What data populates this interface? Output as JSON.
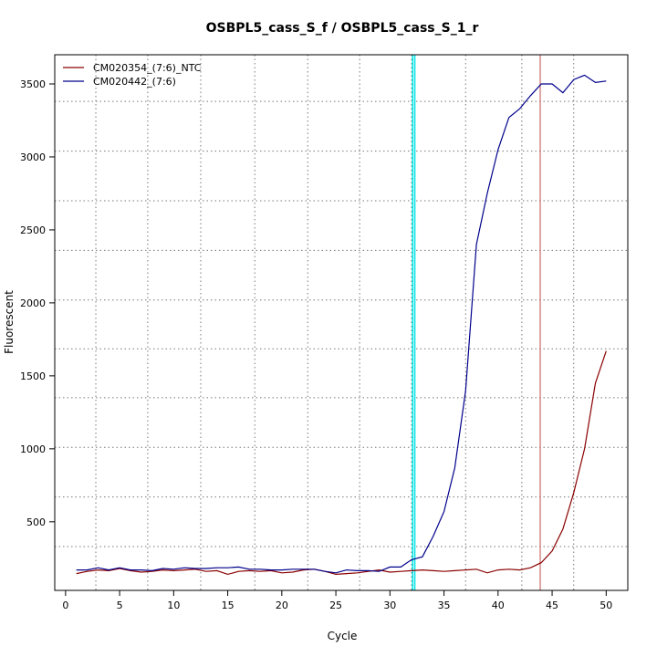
{
  "chart_data": {
    "type": "line",
    "title": "OSBPL5_cass_S_f / OSBPL5_cass_S_1_r",
    "xlabel": "Cycle",
    "ylabel": "Fluorescent",
    "xlim": [
      -1,
      52
    ],
    "ylim": [
      30,
      3700
    ],
    "x_ticks": [
      0,
      5,
      10,
      15,
      20,
      25,
      30,
      35,
      40,
      45,
      50
    ],
    "y_ticks": [
      500,
      1000,
      1500,
      2000,
      2500,
      3000,
      3500
    ],
    "x_grid": [
      2.8,
      7.6,
      12.5,
      17.5,
      22.4,
      27.2,
      32.0,
      37.0,
      42.2,
      47.0
    ],
    "y_grid": [
      330,
      670,
      1010,
      1350,
      1685,
      2020,
      2360,
      2700,
      3040,
      3380
    ],
    "grid": true,
    "legend_position": "top-left",
    "vlines": [
      {
        "x": 32.1,
        "color": "#00e5e5",
        "width": 1.5
      },
      {
        "x": 32.3,
        "color": "#00e5e5",
        "width": 1.5
      },
      {
        "x": 43.9,
        "color": "#c05050",
        "width": 1
      }
    ],
    "series": [
      {
        "name": "CM020354_(7:6)_NTC",
        "color": "#8b0000",
        "x": [
          1,
          2,
          3,
          4,
          5,
          6,
          7,
          8,
          9,
          10,
          11,
          12,
          13,
          14,
          15,
          16,
          17,
          18,
          19,
          20,
          21,
          22,
          23,
          24,
          25,
          26,
          27,
          28,
          29,
          30,
          31,
          32,
          33,
          34,
          35,
          36,
          37,
          38,
          39,
          40,
          41,
          42,
          43,
          44,
          45,
          46,
          47,
          48,
          49,
          50
        ],
        "values": [
          145,
          160,
          170,
          165,
          180,
          165,
          155,
          160,
          170,
          165,
          170,
          175,
          160,
          165,
          140,
          160,
          165,
          160,
          165,
          150,
          155,
          170,
          175,
          160,
          140,
          145,
          150,
          160,
          170,
          155,
          160,
          165,
          170,
          165,
          160,
          165,
          170,
          175,
          150,
          170,
          175,
          170,
          185,
          220,
          300,
          450,
          700,
          1000,
          1450,
          1670
        ]
      },
      {
        "name": "CM020442_(7:6)",
        "color": "#00008b",
        "x": [
          1,
          2,
          3,
          4,
          5,
          6,
          7,
          8,
          9,
          10,
          11,
          12,
          13,
          14,
          15,
          16,
          17,
          18,
          19,
          20,
          21,
          22,
          23,
          24,
          25,
          26,
          27,
          28,
          29,
          30,
          31,
          32,
          33,
          34,
          35,
          36,
          37,
          38,
          39,
          40,
          41,
          42,
          43,
          44,
          45,
          46,
          47,
          48,
          49,
          50
        ],
        "values": [
          170,
          170,
          185,
          170,
          185,
          170,
          170,
          165,
          180,
          175,
          185,
          180,
          180,
          185,
          185,
          190,
          175,
          175,
          170,
          170,
          175,
          175,
          175,
          160,
          150,
          170,
          165,
          165,
          160,
          190,
          190,
          240,
          260,
          400,
          570,
          870,
          1400,
          2400,
          2750,
          3050,
          3270,
          3330,
          3420,
          3500,
          3500,
          3440,
          3530,
          3560,
          3510,
          3520
        ]
      }
    ]
  }
}
